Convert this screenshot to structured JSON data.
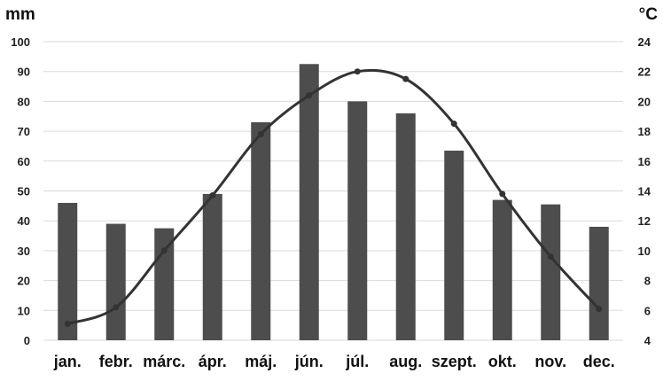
{
  "chart_data": {
    "type": "bar",
    "categories": [
      "jan.",
      "febr.",
      "márc.",
      "ápr.",
      "máj.",
      "jún.",
      "júl.",
      "aug.",
      "szept.",
      "okt.",
      "nov.",
      "dec."
    ],
    "left_axis": {
      "unit": "mm",
      "ticks": [
        "0",
        "10",
        "20",
        "30",
        "40",
        "50",
        "60",
        "70",
        "80",
        "90",
        "100"
      ],
      "ylim": [
        0,
        100
      ]
    },
    "right_axis": {
      "unit": "°C",
      "ticks": [
        "4",
        "6",
        "8",
        "10",
        "12",
        "14",
        "16",
        "18",
        "20",
        "22",
        "24"
      ],
      "ylim": [
        4,
        24
      ]
    },
    "series": [
      {
        "kind": "bar",
        "axis": "left",
        "values": [
          46,
          39,
          37.5,
          49,
          73,
          92.5,
          80,
          76,
          63.5,
          47,
          45.5,
          38
        ]
      },
      {
        "kind": "line",
        "axis": "right",
        "values": [
          5.1,
          6.2,
          10.0,
          13.7,
          17.8,
          20.4,
          22.0,
          21.5,
          18.5,
          13.8,
          9.6,
          6.1
        ]
      }
    ],
    "grid": true,
    "colors": {
      "bar": "#4d4d4d",
      "line": "#333333",
      "grid": "#d9d9d9",
      "text": "#222222"
    }
  }
}
